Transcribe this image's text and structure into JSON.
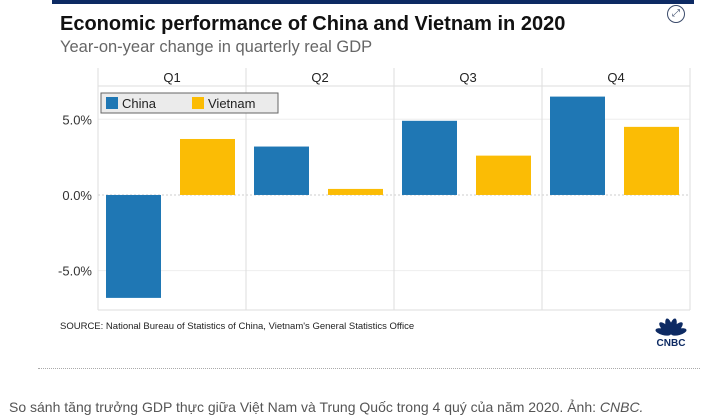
{
  "chart_data": {
    "type": "bar",
    "title": "Economic performance of China and Vietnam in 2020",
    "subtitle": "Year-on-year change in quarterly real GDP",
    "categories": [
      "Q1",
      "Q2",
      "Q3",
      "Q4"
    ],
    "series": [
      {
        "name": "China",
        "color": "#1f77b4",
        "values": [
          -6.8,
          3.2,
          4.9,
          6.5
        ]
      },
      {
        "name": "Vietnam",
        "color": "#fbbc05",
        "values": [
          3.7,
          0.4,
          2.6,
          4.5
        ]
      }
    ],
    "yticks": [
      5,
      0,
      -5
    ],
    "ytick_labels": [
      "5.0%",
      "0.0%",
      "-5.0%"
    ],
    "ylim": [
      -7.6,
      7.2
    ],
    "grid": true,
    "legend_position": "top-left",
    "source": "SOURCE: National Bureau of Statistics of China, Vietnam's General Statistics Office",
    "logo": "CNBC"
  },
  "caption": {
    "text": "So sánh tăng trưởng GDP thực giữa Việt Nam và Trung Quốc trong 4 quý của năm 2020. Ảnh: ",
    "credit": "CNBC."
  },
  "icons": {
    "expand": "expand-icon"
  }
}
